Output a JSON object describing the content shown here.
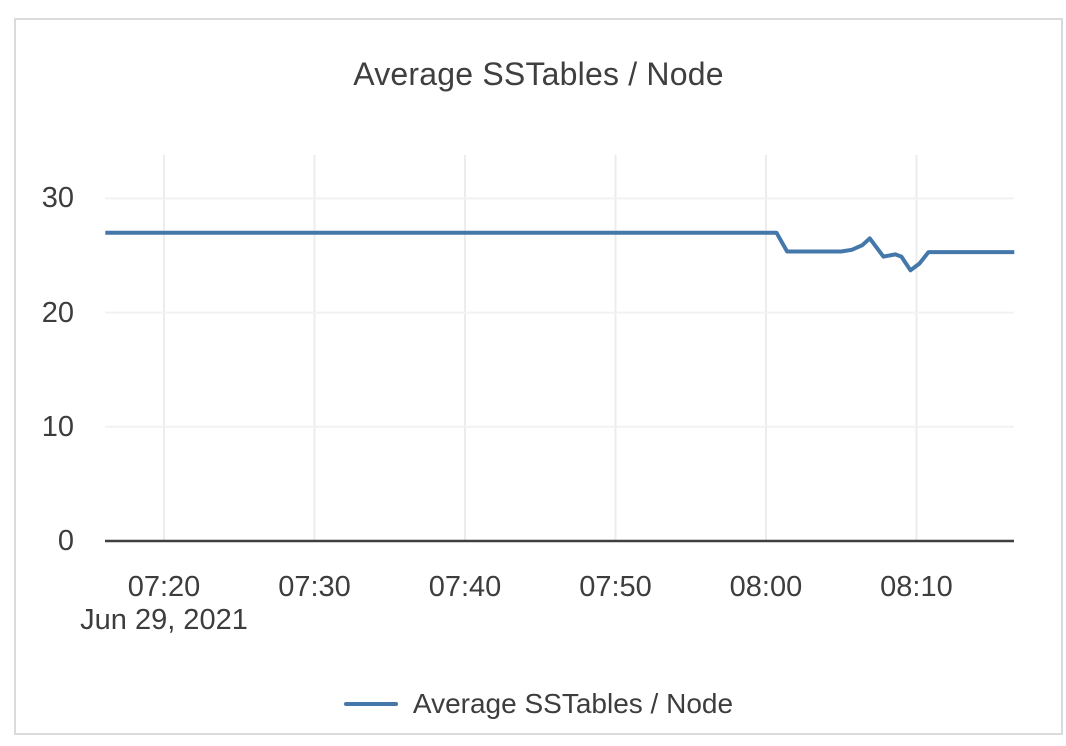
{
  "colors": {
    "series_blue": "#4477aa",
    "axis": "#3f3f3f",
    "grid_vertical": "#ececec",
    "grid_horizontal": "#f2f2f2",
    "text": "#3d3d3d",
    "card_border": "#dbdbdb"
  },
  "chart_data": {
    "type": "line",
    "title": "Average SSTables / Node",
    "x_date_label": "Jun 29, 2021",
    "xlabel": "",
    "ylabel": "",
    "grid": true,
    "legend_position": "bottom",
    "x_axis": {
      "unit": "time of day (HH:MM), encoded as minutes after 07:00",
      "range": [
        16.08,
        76.48
      ],
      "ticks": [
        {
          "value": 20,
          "label": "07:20"
        },
        {
          "value": 30,
          "label": "07:30"
        },
        {
          "value": 40,
          "label": "07:40"
        },
        {
          "value": 50,
          "label": "07:50"
        },
        {
          "value": 60,
          "label": "08:00"
        },
        {
          "value": 70,
          "label": "08:10"
        }
      ]
    },
    "y_axis": {
      "range": [
        0,
        33.8
      ],
      "ticks": [
        {
          "value": 0,
          "label": "0"
        },
        {
          "value": 10,
          "label": "10"
        },
        {
          "value": 20,
          "label": "20"
        },
        {
          "value": 30,
          "label": "30"
        }
      ]
    },
    "series": [
      {
        "name": "Average SSTables / Node",
        "color": "#4477aa",
        "points_note": "pairs of [minutes after 07:00, avg sstables per node]",
        "points": [
          [
            16.1,
            27.0
          ],
          [
            60.7,
            27.0
          ],
          [
            61.4,
            25.35
          ],
          [
            65.0,
            25.35
          ],
          [
            65.7,
            25.5
          ],
          [
            66.4,
            25.9
          ],
          [
            66.9,
            26.5
          ],
          [
            67.8,
            24.9
          ],
          [
            68.6,
            25.1
          ],
          [
            69.0,
            24.9
          ],
          [
            69.6,
            23.7
          ],
          [
            70.2,
            24.3
          ],
          [
            70.8,
            25.3
          ],
          [
            76.5,
            25.3
          ]
        ]
      }
    ]
  }
}
